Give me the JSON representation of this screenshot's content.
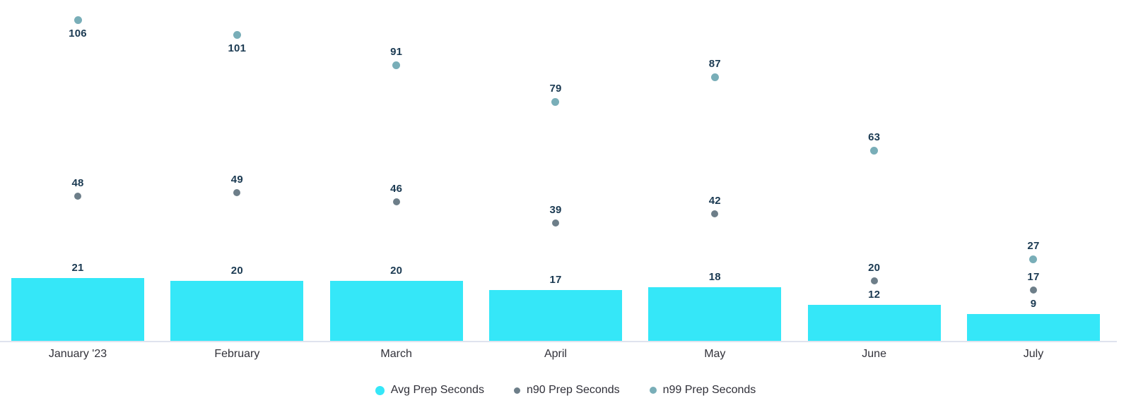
{
  "chart_data": {
    "type": "bar",
    "subtype": "bar-with-scatter-overlay",
    "title": "",
    "xlabel": "",
    "ylabel": "",
    "categories": [
      "January '23",
      "February",
      "March",
      "April",
      "May",
      "June",
      "July"
    ],
    "series": [
      {
        "name": "Avg Prep Seconds",
        "type": "bar",
        "values": [
          21,
          20,
          20,
          17,
          18,
          12,
          9
        ],
        "color": "#35e7f8"
      },
      {
        "name": "n90 Prep Seconds",
        "type": "scatter",
        "values": [
          48,
          49,
          46,
          39,
          42,
          20,
          17
        ],
        "color": "#6d7e89"
      },
      {
        "name": "n99 Prep Seconds",
        "type": "scatter",
        "values": [
          106,
          101,
          91,
          79,
          87,
          63,
          27
        ],
        "color": "#79aeb8",
        "label_below_indices": [
          0,
          1
        ]
      }
    ],
    "ylim": [
      0,
      112
    ],
    "grid": false,
    "axes_visible": false,
    "value_labels": true,
    "legend_position": "bottom",
    "colors": {
      "value_label": "#1b3a52",
      "axis_label": "#32323a",
      "axis_line": "#dfe3ee",
      "legend_text": "#2f2f38",
      "background": "#ffffff"
    }
  }
}
